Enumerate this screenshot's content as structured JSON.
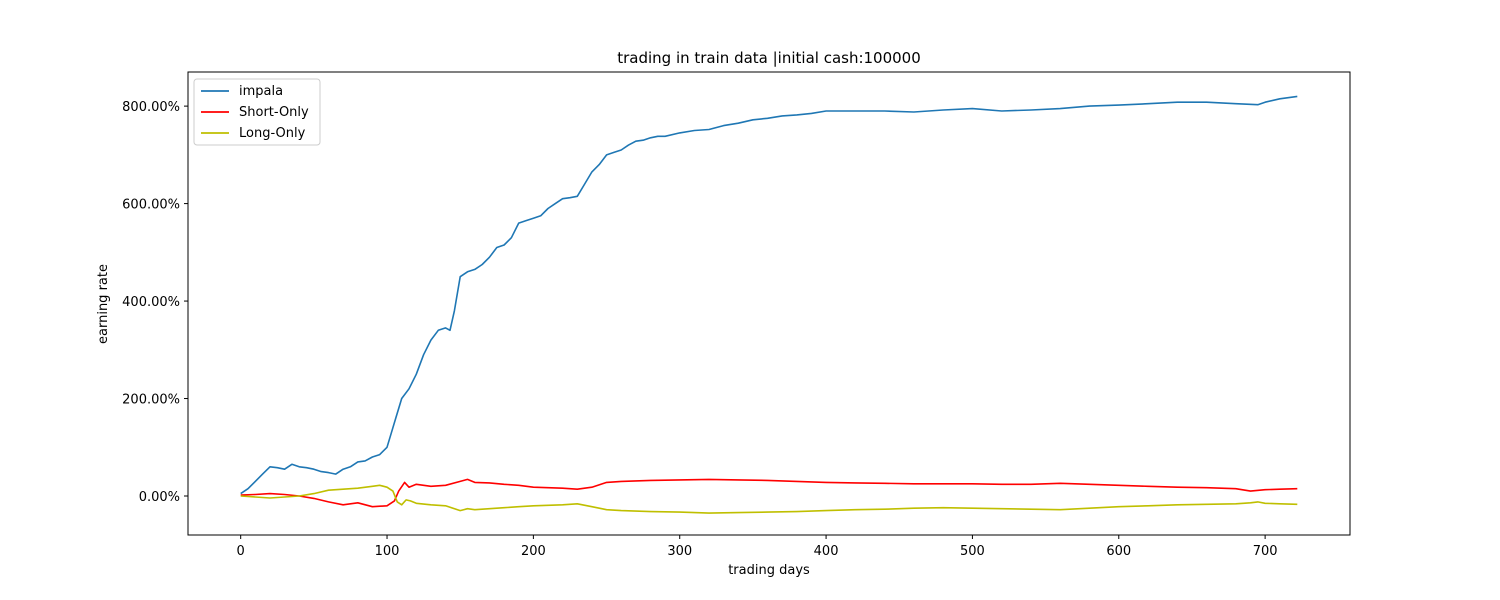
{
  "chart_data": {
    "type": "line",
    "title": "trading in train data |initial cash:100000",
    "xlabel": "trading days",
    "ylabel": "earning rate",
    "xlim": [
      -36,
      758
    ],
    "ylim": [
      -80,
      870
    ],
    "xticks": [
      0,
      100,
      200,
      300,
      400,
      500,
      600,
      700
    ],
    "xtick_labels": [
      "0",
      "100",
      "200",
      "300",
      "400",
      "500",
      "600",
      "700"
    ],
    "yticks": [
      0,
      200,
      400,
      600,
      800
    ],
    "ytick_labels": [
      "0.00%",
      "200.00%",
      "400.00%",
      "600.00%",
      "800.00%"
    ],
    "grid": false,
    "legend_position": "top-left",
    "series": [
      {
        "name": "impala",
        "color": "#1f77b4",
        "x": [
          0,
          5,
          10,
          15,
          20,
          25,
          30,
          35,
          40,
          45,
          50,
          55,
          60,
          65,
          70,
          75,
          80,
          85,
          90,
          95,
          100,
          103,
          106,
          110,
          115,
          120,
          125,
          130,
          135,
          140,
          143,
          146,
          150,
          155,
          160,
          165,
          170,
          175,
          180,
          185,
          190,
          195,
          200,
          205,
          210,
          215,
          220,
          225,
          230,
          235,
          240,
          245,
          250,
          255,
          260,
          265,
          270,
          275,
          280,
          285,
          290,
          300,
          310,
          320,
          330,
          340,
          350,
          360,
          370,
          380,
          390,
          400,
          420,
          440,
          460,
          480,
          500,
          520,
          540,
          560,
          580,
          600,
          620,
          640,
          660,
          680,
          695,
          700,
          710,
          722
        ],
        "y": [
          5,
          15,
          30,
          45,
          60,
          58,
          55,
          65,
          60,
          58,
          55,
          50,
          48,
          45,
          55,
          60,
          70,
          72,
          80,
          85,
          100,
          130,
          160,
          200,
          220,
          250,
          290,
          320,
          340,
          345,
          340,
          380,
          450,
          460,
          465,
          475,
          490,
          510,
          515,
          530,
          560,
          565,
          570,
          575,
          590,
          600,
          610,
          612,
          615,
          640,
          665,
          680,
          700,
          705,
          710,
          720,
          728,
          730,
          735,
          738,
          738,
          745,
          750,
          752,
          760,
          765,
          772,
          775,
          780,
          782,
          785,
          790,
          790,
          790,
          788,
          792,
          795,
          790,
          792,
          795,
          800,
          802,
          805,
          808,
          808,
          805,
          803,
          808,
          815,
          820
        ]
      },
      {
        "name": "Short-Only",
        "color": "#ff0000",
        "x": [
          0,
          10,
          20,
          30,
          40,
          50,
          60,
          70,
          80,
          90,
          100,
          105,
          108,
          112,
          115,
          120,
          130,
          140,
          150,
          155,
          160,
          170,
          180,
          190,
          200,
          210,
          220,
          230,
          240,
          250,
          260,
          270,
          280,
          300,
          320,
          340,
          360,
          380,
          400,
          420,
          440,
          460,
          480,
          500,
          520,
          540,
          560,
          580,
          600,
          620,
          640,
          660,
          680,
          690,
          700,
          710,
          722
        ],
        "y": [
          2,
          3,
          5,
          3,
          0,
          -5,
          -12,
          -18,
          -14,
          -22,
          -20,
          -10,
          10,
          28,
          18,
          24,
          20,
          22,
          30,
          34,
          28,
          27,
          24,
          22,
          18,
          17,
          16,
          14,
          18,
          28,
          30,
          31,
          32,
          33,
          34,
          33,
          32,
          30,
          28,
          27,
          26,
          25,
          25,
          25,
          24,
          24,
          26,
          24,
          22,
          20,
          18,
          17,
          15,
          10,
          13,
          14,
          15
        ]
      },
      {
        "name": "Long-Only",
        "color": "#bfbf00",
        "x": [
          0,
          10,
          20,
          30,
          40,
          50,
          60,
          70,
          80,
          90,
          95,
          100,
          104,
          107,
          110,
          113,
          116,
          120,
          130,
          140,
          150,
          155,
          160,
          170,
          180,
          190,
          200,
          210,
          220,
          230,
          240,
          250,
          260,
          270,
          280,
          300,
          320,
          340,
          360,
          380,
          400,
          420,
          440,
          460,
          480,
          500,
          520,
          540,
          560,
          580,
          600,
          620,
          640,
          660,
          680,
          690,
          695,
          700,
          710,
          722
        ],
        "y": [
          0,
          -2,
          -4,
          -2,
          0,
          5,
          12,
          14,
          16,
          20,
          22,
          18,
          10,
          -12,
          -18,
          -8,
          -10,
          -15,
          -18,
          -20,
          -30,
          -26,
          -28,
          -26,
          -24,
          -22,
          -20,
          -19,
          -18,
          -16,
          -22,
          -28,
          -30,
          -31,
          -32,
          -33,
          -35,
          -34,
          -33,
          -32,
          -30,
          -28,
          -27,
          -25,
          -24,
          -25,
          -26,
          -27,
          -28,
          -25,
          -22,
          -20,
          -18,
          -17,
          -16,
          -14,
          -12,
          -15,
          -16,
          -17
        ]
      }
    ]
  }
}
